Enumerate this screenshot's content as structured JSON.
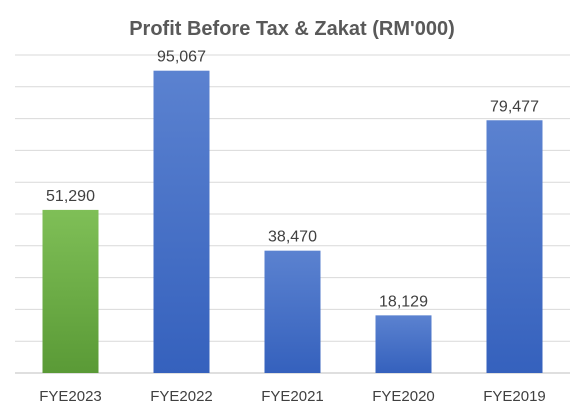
{
  "chart_data": {
    "type": "bar",
    "title": "Profit Before Tax & Zakat  (RM'000)",
    "xlabel": "",
    "ylabel": "",
    "categories": [
      "FYE2023",
      "FYE2022",
      "FYE2021",
      "FYE2020",
      "FYE2019"
    ],
    "values": [
      51290,
      95067,
      38470,
      18129,
      79477
    ],
    "data_labels": [
      "51,290",
      "95,067",
      "38,470",
      "18,129",
      "79,477"
    ],
    "ylim": [
      0,
      100000
    ],
    "grid": true,
    "legend": "none",
    "colors": {
      "highlight_bar": "#70ad47",
      "bar": "#4472c4",
      "gridline": "#d9d9d9"
    }
  }
}
